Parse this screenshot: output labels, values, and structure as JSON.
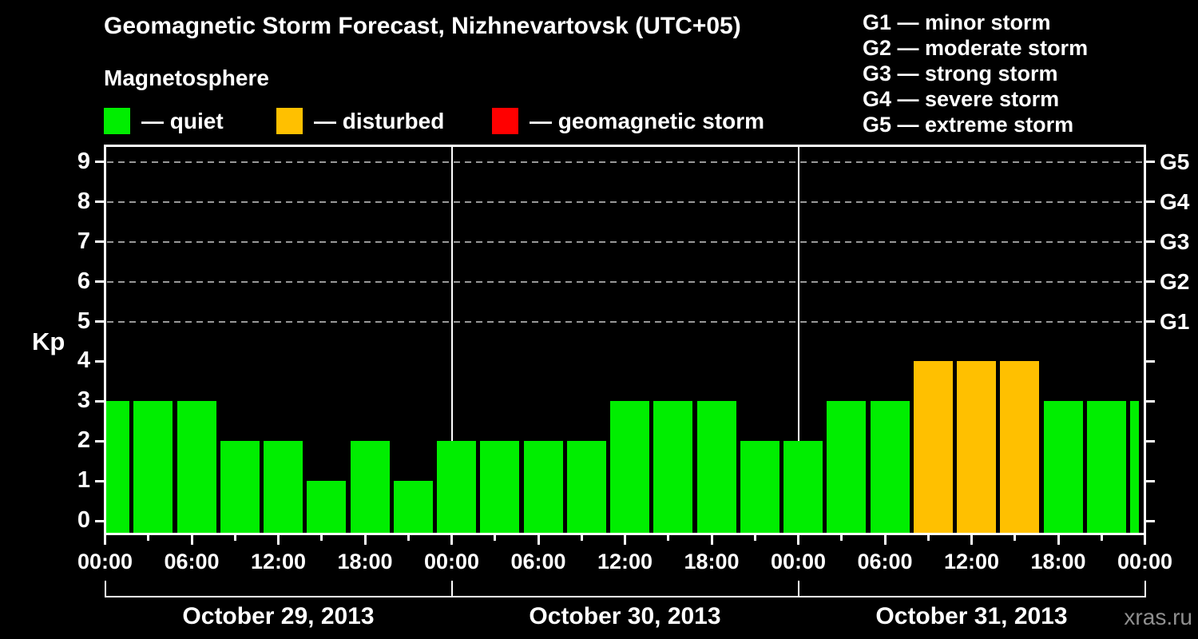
{
  "title": "Geomagnetic Storm Forecast, Nizhnevartovsk (UTC+05)",
  "watermark": "xras.ru",
  "colors": {
    "background": "#000000",
    "quiet": "#00ee00",
    "disturbed": "#ffc000",
    "storm": "#ff0000",
    "axis": "#ffffff",
    "grid": "#999999",
    "watermark_text": "#8f8f8f"
  },
  "chart_data": {
    "type": "bar",
    "title": "Geomagnetic Storm Forecast, Nizhnevartovsk (UTC+05)",
    "subtitle": "Magnetosphere",
    "status_legend": [
      {
        "status": "quiet",
        "label": "— quiet"
      },
      {
        "status": "disturbed",
        "label": "— disturbed"
      },
      {
        "status": "storm",
        "label": "— geomagnetic storm"
      }
    ],
    "g_scale_legend": [
      "G1 — minor storm",
      "G2 — moderate storm",
      "G3 — strong storm",
      "G4 — severe storm",
      "G5 — extreme storm"
    ],
    "ylabel": "Kp",
    "ylim": [
      0,
      9
    ],
    "y_ticks": [
      0,
      1,
      2,
      3,
      4,
      5,
      6,
      7,
      8,
      9
    ],
    "grid_levels_kp": [
      5,
      6,
      7,
      8,
      9
    ],
    "right_axis_labels": [
      {
        "label": "G5",
        "kp": 9
      },
      {
        "label": "G4",
        "kp": 8
      },
      {
        "label": "G3",
        "kp": 7
      },
      {
        "label": "G2",
        "kp": 6
      },
      {
        "label": "G1",
        "kp": 5
      }
    ],
    "x_axis": {
      "minor_tick_interval_hours": 3,
      "major_tick_interval_hours": 6,
      "labels": [
        "00:00",
        "06:00",
        "12:00",
        "18:00",
        "00:00",
        "06:00",
        "12:00",
        "18:00",
        "00:00",
        "06:00",
        "12:00",
        "18:00",
        "00:00"
      ]
    },
    "bar_interval_hours": 3,
    "days": [
      {
        "date": "October 29, 2013",
        "kp": [
          3,
          3,
          3,
          2,
          2,
          1,
          2,
          1
        ],
        "status": [
          "quiet",
          "quiet",
          "quiet",
          "quiet",
          "quiet",
          "quiet",
          "quiet",
          "quiet"
        ]
      },
      {
        "date": "October 30, 2013",
        "kp": [
          2,
          2,
          2,
          2,
          3,
          3,
          3,
          2
        ],
        "status": [
          "quiet",
          "quiet",
          "quiet",
          "quiet",
          "quiet",
          "quiet",
          "quiet",
          "quiet"
        ]
      },
      {
        "date": "October 31, 2013",
        "kp": [
          2,
          3,
          3,
          4,
          4,
          4,
          3,
          3
        ],
        "status": [
          "quiet",
          "quiet",
          "quiet",
          "disturbed",
          "disturbed",
          "disturbed",
          "quiet",
          "quiet"
        ]
      }
    ],
    "partial_last_bar": {
      "kp": 3,
      "status": "quiet"
    }
  }
}
